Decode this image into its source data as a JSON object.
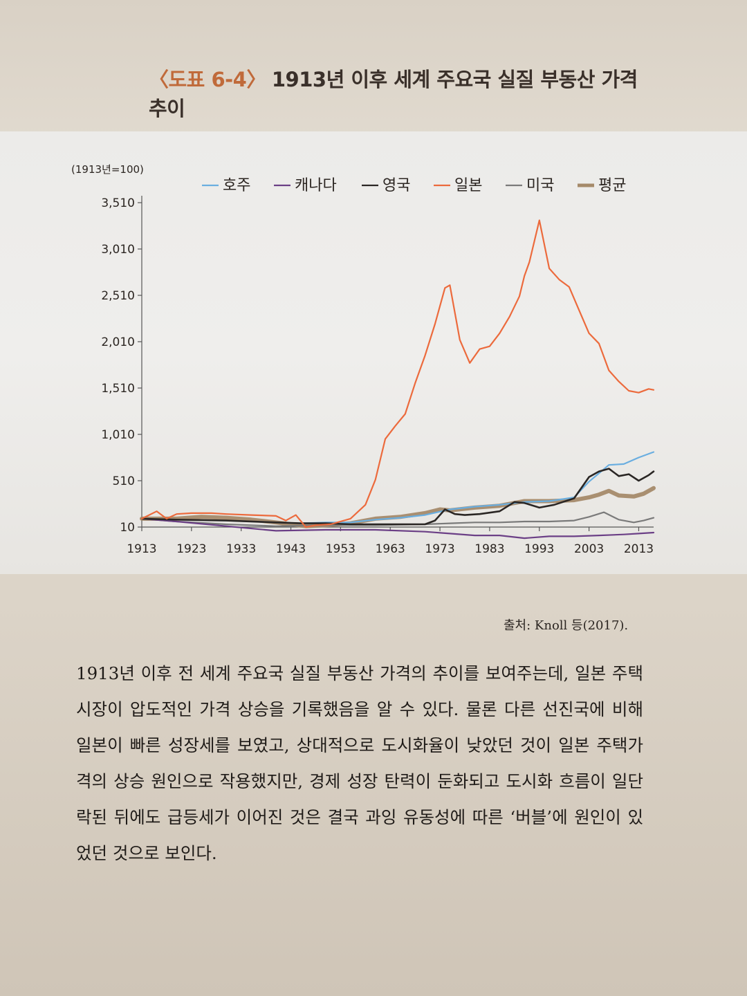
{
  "figure": {
    "tag": "〈도표 6-4〉",
    "title": "1913년 이후 세계 주요국 실질 부동산 가격 추이"
  },
  "source": "출처: Knoll 등(2017).",
  "body_text": "1913년 이후 전 세계 주요국 실질 부동산 가격의 추이를 보여주는데, 일본 주택시장이 압도적인 가격 상승을 기록했음을 알 수 있다. 물론 다른 선진국에 비해 일본이 빠른 성장세를 보였고, 상대적으로 도시화율이 낮았던 것이 일본 주택가격의 상승 원인으로 작용했지만, 경제 성장 탄력이 둔화되고 도시화 흐름이 일단락된 뒤에도 급등세가 이어진 것은 결국 과잉 유동성에 따른 ‘버블’에 원인이 있었던 것으로 보인다.",
  "colors": {
    "australia": "#6aaee0",
    "canada": "#6b3f86",
    "uk": "#2a2624",
    "japan": "#ec6a3c",
    "usa": "#7a7a7a",
    "average": "#a58a6a",
    "axis": "#555555"
  },
  "chart_data": {
    "type": "line",
    "unit_label": "(1913년=100)",
    "x_ticks": [
      "1913",
      "1923",
      "1933",
      "1943",
      "1953",
      "1963",
      "1973",
      "1983",
      "1993",
      "2003",
      "2013"
    ],
    "y_ticks": [
      "10",
      "510",
      "1,010",
      "1,510",
      "2,010",
      "2,510",
      "3,010",
      "3,510"
    ],
    "xlim": [
      1913,
      2016
    ],
    "ylim": [
      10,
      3510
    ],
    "legend_position": "top",
    "series": [
      {
        "name": "호주",
        "key": "australia",
        "x": [
          1913,
          1920,
          1930,
          1940,
          1945,
          1950,
          1955,
          1960,
          1965,
          1970,
          1975,
          1980,
          1985,
          1990,
          1995,
          2000,
          2003,
          2005,
          2007,
          2010,
          2013,
          2016
        ],
        "y": [
          100,
          90,
          80,
          60,
          50,
          60,
          60,
          90,
          110,
          140,
          200,
          230,
          250,
          280,
          290,
          330,
          500,
          590,
          680,
          690,
          760,
          820
        ]
      },
      {
        "name": "캐나다",
        "key": "canada",
        "x": [
          1913,
          1920,
          1930,
          1940,
          1950,
          1960,
          1970,
          1975,
          1980,
          1985,
          1990,
          1995,
          2000,
          2005,
          2010,
          2013,
          2016
        ],
        "y": [
          100,
          70,
          20,
          -30,
          -20,
          -20,
          -40,
          -60,
          -80,
          -80,
          -110,
          -90,
          -90,
          -80,
          -70,
          -60,
          -50
        ]
      },
      {
        "name": "영국",
        "key": "uk",
        "x": [
          1913,
          1920,
          1930,
          1940,
          1945,
          1950,
          1955,
          1960,
          1965,
          1970,
          1972,
          1974,
          1976,
          1978,
          1981,
          1985,
          1988,
          1990,
          1993,
          1996,
          2000,
          2003,
          2005,
          2007,
          2009,
          2011,
          2013,
          2015,
          2016
        ],
        "y": [
          100,
          90,
          80,
          60,
          50,
          50,
          40,
          40,
          40,
          40,
          80,
          200,
          150,
          140,
          150,
          180,
          280,
          270,
          220,
          250,
          320,
          550,
          610,
          640,
          560,
          580,
          510,
          570,
          610
        ]
      },
      {
        "name": "일본",
        "key": "japan",
        "x": [
          1913,
          1916,
          1918,
          1920,
          1923,
          1927,
          1930,
          1935,
          1940,
          1942,
          1944,
          1946,
          1948,
          1951,
          1955,
          1958,
          1960,
          1962,
          1964,
          1966,
          1968,
          1970,
          1972,
          1974,
          1975,
          1977,
          1979,
          1981,
          1983,
          1985,
          1987,
          1989,
          1990,
          1991,
          1993,
          1995,
          1997,
          1999,
          2001,
          2003,
          2005,
          2007,
          2009,
          2011,
          2013,
          2015,
          2016
        ],
        "y": [
          100,
          180,
          100,
          150,
          160,
          160,
          150,
          140,
          130,
          80,
          140,
          10,
          30,
          40,
          100,
          250,
          520,
          960,
          1100,
          1230,
          1560,
          1860,
          2200,
          2590,
          2620,
          2030,
          1780,
          1930,
          1960,
          2100,
          2280,
          2500,
          2720,
          2870,
          3320,
          2800,
          2680,
          2600,
          2350,
          2100,
          1990,
          1700,
          1580,
          1480,
          1460,
          1500,
          1490
        ]
      },
      {
        "name": "미국",
        "key": "usa",
        "x": [
          1913,
          1920,
          1930,
          1940,
          1950,
          1960,
          1970,
          1975,
          1980,
          1985,
          1990,
          1995,
          2000,
          2003,
          2006,
          2009,
          2012,
          2014,
          2016
        ],
        "y": [
          100,
          70,
          40,
          20,
          30,
          30,
          40,
          50,
          60,
          60,
          70,
          70,
          80,
          120,
          170,
          90,
          60,
          80,
          110
        ]
      },
      {
        "name": "평균",
        "key": "average",
        "x": [
          1913,
          1920,
          1925,
          1930,
          1935,
          1940,
          1943,
          1946,
          1950,
          1955,
          1960,
          1965,
          1970,
          1973,
          1975,
          1980,
          1985,
          1990,
          1995,
          2000,
          2003,
          2005,
          2007,
          2009,
          2012,
          2014,
          2016
        ],
        "y": [
          100,
          100,
          120,
          110,
          90,
          60,
          40,
          20,
          30,
          50,
          100,
          120,
          160,
          200,
          190,
          220,
          240,
          290,
          290,
          300,
          330,
          360,
          400,
          350,
          340,
          370,
          430
        ]
      }
    ]
  }
}
